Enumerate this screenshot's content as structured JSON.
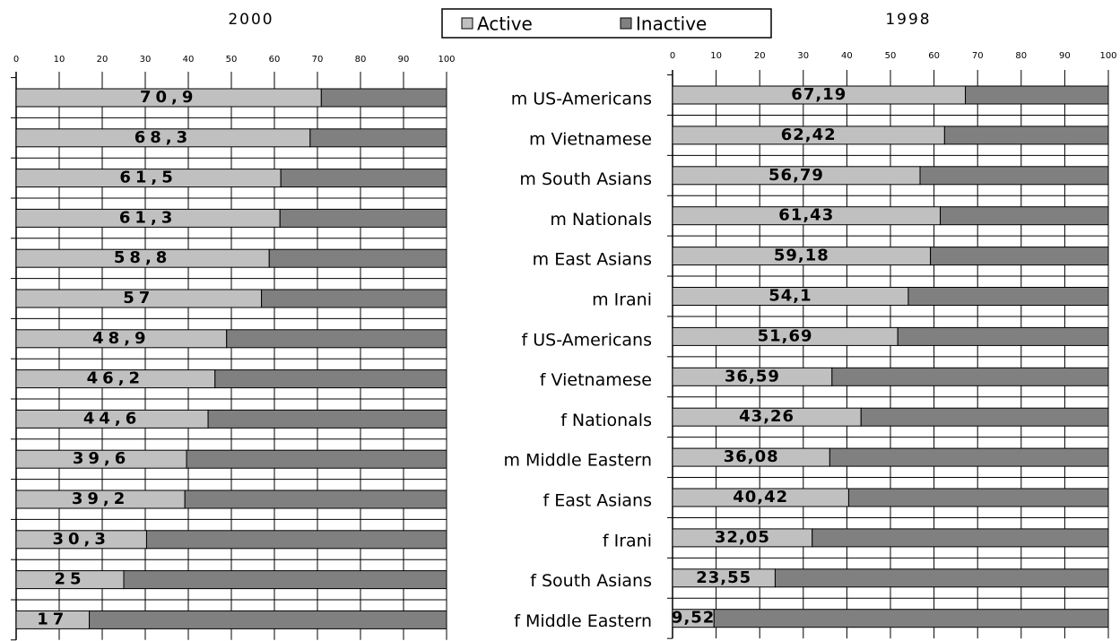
{
  "chart_data": [
    {
      "type": "bar",
      "title": "2000",
      "categories": [
        "m US-Americans",
        "m Vietnamese",
        "m South Asians",
        "m Nationals",
        "m East Asians",
        "m Irani",
        "f US-Americans",
        "f Vietnamese",
        "f Nationals",
        "m Middle Eastern",
        "f East Asians",
        "f Irani",
        "f South Asians",
        "f Middle Eastern"
      ],
      "series": [
        {
          "name": "Active",
          "color": "#c0c0c0",
          "values": [
            70.9,
            68.3,
            61.5,
            61.3,
            58.8,
            57,
            48.9,
            46.2,
            44.6,
            39.6,
            39.2,
            30.3,
            25,
            17
          ],
          "value_labels": [
            "70,9",
            "68,3",
            "61,5",
            "61,3",
            "58,8",
            "57",
            "48,9",
            "46,2",
            "44,6",
            "39,6",
            "39,2",
            "30,3",
            "25",
            "17"
          ]
        },
        {
          "name": "Inactive",
          "color": "#808080",
          "values": [
            29.1,
            31.7,
            38.5,
            38.7,
            41.2,
            43,
            51.1,
            53.8,
            55.4,
            60.4,
            60.8,
            69.7,
            75,
            83
          ]
        }
      ],
      "xlim": [
        0,
        100
      ],
      "xticks": [
        0,
        10,
        20,
        30,
        40,
        50,
        60,
        70,
        80,
        90,
        100
      ],
      "stacked": true,
      "legend": "top"
    },
    {
      "type": "bar",
      "title": "1998",
      "series": [
        {
          "color": "#c0c0c0",
          "values": [
            67.19,
            62.42,
            56.79,
            61.43,
            59.18,
            54.1,
            51.69,
            36.59,
            43.26,
            36.08,
            40.42,
            32.05,
            23.55,
            9.52
          ],
          "value_labels": [
            "67,19",
            "62,42",
            "56,79",
            "61,43",
            "59,18",
            "54,1",
            "51,69",
            "36,59",
            "43,26",
            "36,08",
            "40,42",
            "32,05",
            "23,55",
            "9,52"
          ]
        },
        {
          "color": "#808080",
          "values": [
            32.81,
            37.58,
            43.21,
            38.57,
            40.82,
            45.9,
            48.31,
            63.41,
            56.74,
            63.92,
            59.58,
            67.95,
            76.45,
            90.48
          ]
        }
      ],
      "xlim": [
        0,
        100
      ],
      "xticks": [
        0,
        10,
        20,
        30,
        40,
        50,
        60,
        70,
        80,
        90,
        100
      ],
      "stacked": true
    }
  ]
}
